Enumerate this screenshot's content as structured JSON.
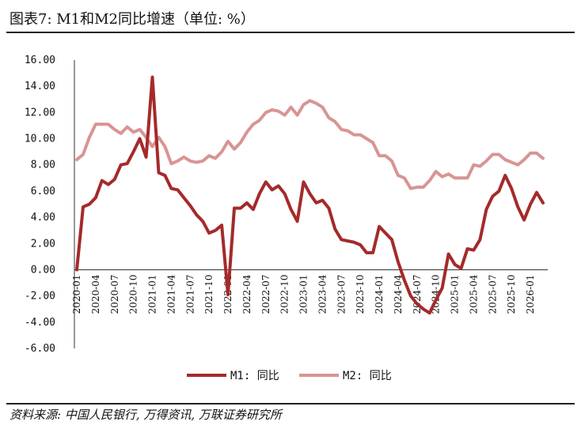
{
  "title": "图表7: M1和M2同比增速（单位: %）",
  "source": "资料来源: 中国人民银行, 万得资讯, 万联证券研究所",
  "chart_data": {
    "type": "line",
    "ylim": [
      -6,
      16
    ],
    "y_ticks": [
      "16.00",
      "14.00",
      "12.00",
      "10.00",
      "8.00",
      "6.00",
      "4.00",
      "2.00",
      "0.00",
      "-2.00",
      "-4.00",
      "-6.00"
    ],
    "x_tick_labels": [
      "2020-01",
      "2020-04",
      "2020-07",
      "2020-10",
      "2021-01",
      "2021-04",
      "2021-07",
      "2021-10",
      "2022-01",
      "2022-04",
      "2022-07",
      "2022-10",
      "2023-01",
      "2023-04",
      "2023-07",
      "2023-10",
      "2024-01",
      "2024-04",
      "2024-07",
      "2024-10",
      "2025-01",
      "2025-04",
      "2025-07",
      "2025-10",
      "2026-01"
    ],
    "legend_position": "bottom",
    "grid": false,
    "series": [
      {
        "name": "M1: 同比",
        "color": "#a52a2a",
        "values": [
          0.0,
          4.8,
          5.0,
          5.5,
          6.8,
          6.5,
          6.9,
          8.0,
          8.1,
          9.0,
          10.0,
          8.6,
          14.7,
          7.4,
          7.2,
          6.2,
          6.1,
          5.5,
          4.9,
          4.2,
          3.7,
          2.8,
          3.0,
          3.4,
          -1.9,
          4.7,
          4.7,
          5.1,
          4.6,
          5.8,
          6.7,
          6.1,
          6.4,
          5.8,
          4.6,
          3.7,
          6.7,
          5.8,
          5.1,
          5.3,
          4.7,
          3.1,
          2.3,
          2.2,
          2.1,
          1.9,
          1.3,
          1.3,
          3.3,
          2.8,
          2.3,
          0.6,
          -0.8,
          -2.0,
          -2.6,
          -3.0,
          -3.3,
          -2.3,
          -1.4,
          1.2,
          0.4,
          0.1,
          1.6,
          1.5,
          2.3,
          4.6,
          5.6,
          6.0,
          7.2,
          6.2,
          4.8,
          3.8,
          5.0,
          5.9,
          5.1
        ]
      },
      {
        "name": "M2: 同比",
        "color": "#d99494",
        "values": [
          8.4,
          8.8,
          10.1,
          11.1,
          11.1,
          11.1,
          10.7,
          10.4,
          10.9,
          10.5,
          10.7,
          10.1,
          9.4,
          10.1,
          9.4,
          8.1,
          8.3,
          8.6,
          8.3,
          8.2,
          8.3,
          8.7,
          8.5,
          9.0,
          9.8,
          9.2,
          9.7,
          10.5,
          11.1,
          11.4,
          12.0,
          12.2,
          12.1,
          11.8,
          12.4,
          11.8,
          12.6,
          12.9,
          12.7,
          12.4,
          11.6,
          11.3,
          10.7,
          10.6,
          10.3,
          10.3,
          10.0,
          9.7,
          8.7,
          8.7,
          8.3,
          7.2,
          7.0,
          6.2,
          6.3,
          6.3,
          6.8,
          7.5,
          7.1,
          7.3,
          7.0,
          7.0,
          7.0,
          8.0,
          7.9,
          8.3,
          8.8,
          8.8,
          8.4,
          8.2,
          8.0,
          8.4,
          8.9,
          8.9,
          8.5
        ]
      }
    ]
  }
}
